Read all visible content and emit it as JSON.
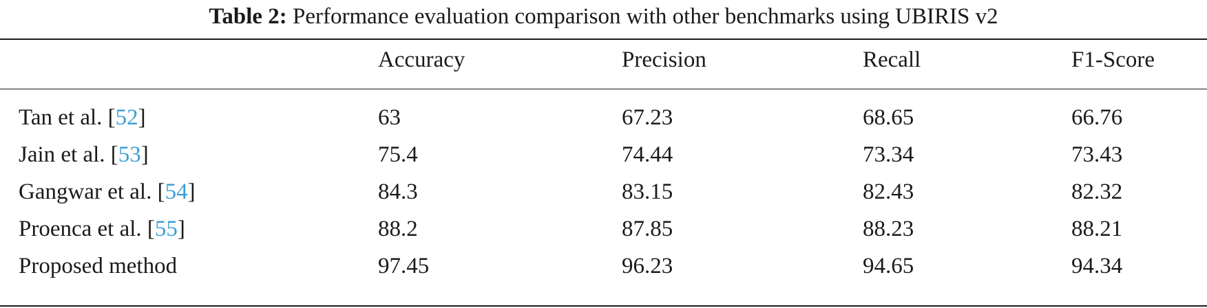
{
  "caption": {
    "label": "Table 2:",
    "text": "Performance evaluation comparison with other benchmarks using UBIRIS v2"
  },
  "table": {
    "headers": [
      "",
      "Accuracy",
      "Precision",
      "Recall",
      "F1-Score"
    ],
    "rows": [
      {
        "method": "Tan et al. [",
        "cite": "52",
        "close": "]",
        "accuracy": "63",
        "precision": "67.23",
        "recall": "68.65",
        "f1": "66.76"
      },
      {
        "method": "Jain et al. [",
        "cite": "53",
        "close": "]",
        "accuracy": "75.4",
        "precision": "74.44",
        "recall": "73.34",
        "f1": "73.43"
      },
      {
        "method": "Gangwar et al. [",
        "cite": "54",
        "close": "]",
        "accuracy": "84.3",
        "precision": "83.15",
        "recall": "82.43",
        "f1": "82.32"
      },
      {
        "method": "Proenca et al. [",
        "cite": "55",
        "close": "]",
        "accuracy": "88.2",
        "precision": "87.85",
        "recall": "88.23",
        "f1": "88.21"
      },
      {
        "method": "Proposed method",
        "cite": "",
        "close": "",
        "accuracy": "97.45",
        "precision": "96.23",
        "recall": "94.65",
        "f1": "94.34"
      }
    ]
  },
  "colors": {
    "citation_link": "#3a9fd6",
    "text": "#1a1a1a"
  }
}
